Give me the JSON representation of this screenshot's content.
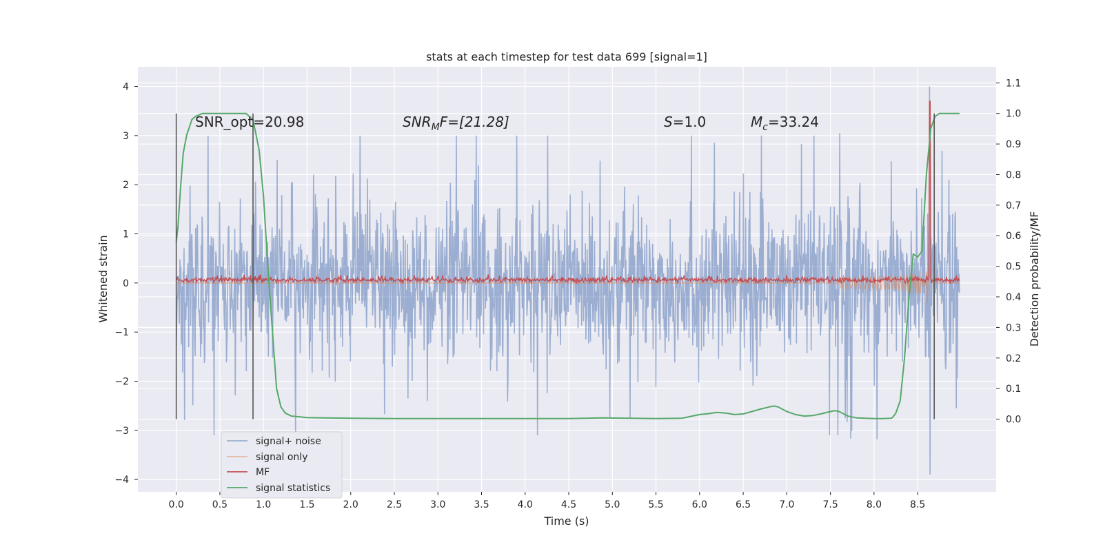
{
  "chart_data": {
    "type": "line",
    "title": "stats at each timestep for test data 699 [signal=1]",
    "xlabel": "Time (s)",
    "ylabel": "Whitened strain",
    "y2label": "Detection probability/MF",
    "xlim": [
      -0.44,
      9.4
    ],
    "ylim": [
      -4.25,
      4.4
    ],
    "y2lim": [
      -0.2375,
      1.1525
    ],
    "x_ticks": [
      "0.0",
      "0.5",
      "1.0",
      "1.5",
      "2.0",
      "2.5",
      "3.0",
      "3.5",
      "4.0",
      "4.5",
      "5.0",
      "5.5",
      "6.0",
      "6.5",
      "7.0",
      "7.5",
      "8.0",
      "8.5"
    ],
    "y_ticks": [
      "4",
      "3",
      "2",
      "1",
      "0",
      "−1",
      "−2",
      "−3",
      "−4"
    ],
    "y2_ticks": [
      "1.1",
      "1.0",
      "0.9",
      "0.8",
      "0.7",
      "0.6",
      "0.5",
      "0.4",
      "0.3",
      "0.2",
      "0.1",
      "0.0"
    ],
    "grid": true,
    "legend_position": "lower-left",
    "annotations": {
      "snr_opt": "SNR_opt=20.98",
      "snr_mf": {
        "base": "SNR",
        "sub": "M",
        "rest": "F=[21.28]"
      },
      "s": {
        "italic": "S",
        "rest": "=1.0"
      },
      "mc": {
        "base": "M",
        "sub": "c",
        "rest": "=33.24"
      }
    },
    "vertical_markers": [
      0.0,
      0.88,
      8.69
    ],
    "series": [
      {
        "name": "signal+ noise",
        "color": "#4c72b0",
        "alpha": 0.5,
        "description_values": {
          "x_range": [
            0.0,
            8.98
          ],
          "core_amplitude": 1.25,
          "max_peak": 4.0,
          "min_peak": -3.9
        }
      },
      {
        "name": "signal only",
        "color": "#dd8452",
        "alpha": 0.5,
        "description_values": {
          "chirp_start": 7.6,
          "merger_time": 8.64,
          "peak": 3.8,
          "trough": -3.4
        }
      },
      {
        "name": "MF",
        "color": "#c44e52",
        "description_values": {
          "baseline": 0.06,
          "noise": 0.05
        }
      },
      {
        "name": "signal statistics",
        "color": "#55a868",
        "axis": "right",
        "x": [
          0.0,
          0.02,
          0.05,
          0.08,
          0.12,
          0.18,
          0.22,
          0.3,
          0.5,
          0.7,
          0.8,
          0.88,
          0.95,
          1.0,
          1.05,
          1.1,
          1.15,
          1.2,
          1.25,
          1.32,
          1.4,
          1.5,
          1.7,
          2.0,
          2.5,
          3.0,
          3.5,
          4.0,
          4.5,
          4.9,
          5.2,
          5.5,
          5.8,
          6.0,
          6.1,
          6.2,
          6.3,
          6.4,
          6.5,
          6.6,
          6.7,
          6.8,
          6.85,
          6.9,
          7.0,
          7.1,
          7.2,
          7.3,
          7.4,
          7.5,
          7.55,
          7.6,
          7.7,
          7.8,
          7.9,
          8.0,
          8.1,
          8.2,
          8.22,
          8.25,
          8.3,
          8.35,
          8.4,
          8.45,
          8.5,
          8.55,
          8.6,
          8.65,
          8.7,
          8.75,
          8.8,
          8.85,
          8.9,
          8.98
        ],
        "y": [
          0.58,
          0.63,
          0.76,
          0.87,
          0.93,
          0.98,
          0.99,
          1.0,
          1.0,
          1.0,
          1.0,
          0.98,
          0.88,
          0.73,
          0.5,
          0.3,
          0.1,
          0.04,
          0.02,
          0.01,
          0.008,
          0.005,
          0.004,
          0.003,
          0.002,
          0.002,
          0.002,
          0.002,
          0.002,
          0.004,
          0.003,
          0.002,
          0.003,
          0.015,
          0.018,
          0.022,
          0.02,
          0.015,
          0.017,
          0.025,
          0.033,
          0.04,
          0.043,
          0.04,
          0.025,
          0.015,
          0.01,
          0.012,
          0.018,
          0.025,
          0.028,
          0.025,
          0.01,
          0.004,
          0.003,
          0.002,
          0.002,
          0.003,
          0.008,
          0.02,
          0.06,
          0.2,
          0.4,
          0.54,
          0.53,
          0.55,
          0.8,
          0.95,
          0.99,
          1.0,
          1.0,
          1.0,
          1.0,
          1.0
        ]
      }
    ]
  }
}
